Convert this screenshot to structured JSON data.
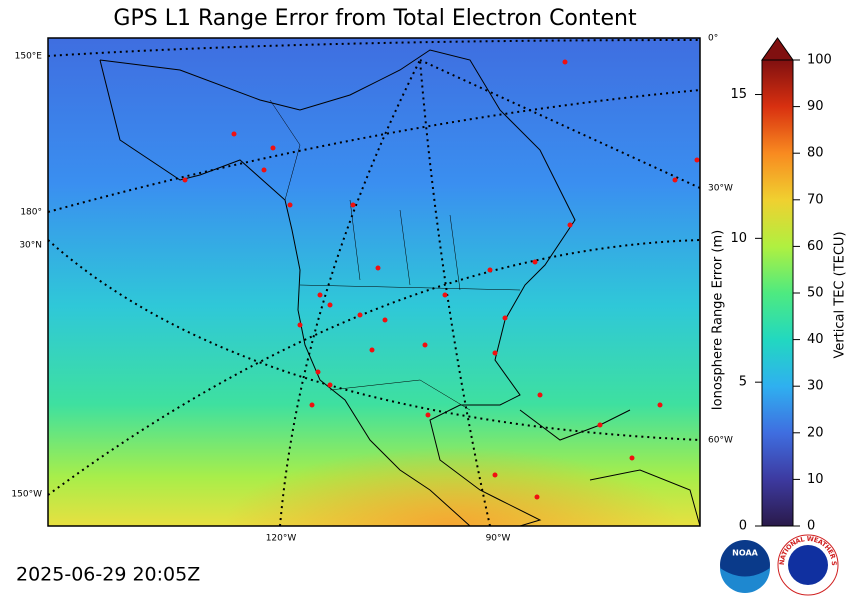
{
  "title": "GPS L1 Range Error from Total Electron Content",
  "timestamp": "2025-06-29 20:05Z",
  "graticule_labels": [
    "0°",
    "150°E",
    "180°",
    "30°N",
    "30°W",
    "60°W",
    "150°W",
    "120°W",
    "90°W"
  ],
  "colorbar": {
    "range_axis": {
      "label": "Ionosphere Range Error (m)",
      "lim": [
        0,
        16.2
      ],
      "ticks": [
        0,
        5,
        10,
        15
      ]
    },
    "tec_axis": {
      "label": "Vertical TEC (TECU)",
      "lim": [
        0,
        100
      ],
      "ticks": [
        0,
        10,
        20,
        30,
        40,
        50,
        60,
        70,
        80,
        90,
        100
      ]
    }
  },
  "logos": {
    "noaa": "NOAA",
    "nws": "NATIONAL WEATHER SERVICE"
  }
}
